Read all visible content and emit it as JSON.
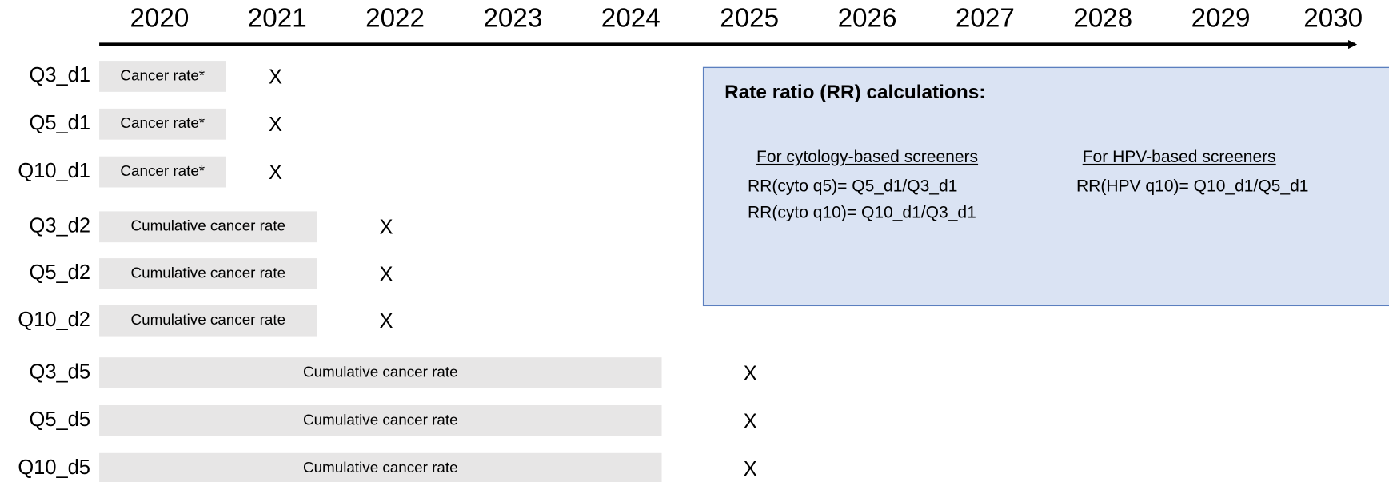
{
  "years": [
    "2020",
    "2021",
    "2022",
    "2023",
    "2024",
    "2025",
    "2026",
    "2027",
    "2028",
    "2029",
    "2030"
  ],
  "rows": [
    {
      "label": "Q3_d1",
      "bar": "Cancer rate*",
      "mark": "X"
    },
    {
      "label": "Q5_d1",
      "bar": "Cancer rate*",
      "mark": "X"
    },
    {
      "label": "Q10_d1",
      "bar": "Cancer rate*",
      "mark": "X"
    },
    {
      "label": "Q3_d2",
      "bar": "Cumulative cancer rate",
      "mark": "X"
    },
    {
      "label": "Q5_d2",
      "bar": "Cumulative cancer rate",
      "mark": "X"
    },
    {
      "label": "Q10_d2",
      "bar": "Cumulative cancer rate",
      "mark": "X"
    },
    {
      "label": "Q3_d5",
      "bar": "Cumulative cancer rate",
      "mark": "X"
    },
    {
      "label": "Q5_d5",
      "bar": "Cumulative cancer rate",
      "mark": "X"
    },
    {
      "label": "Q10_d5",
      "bar": "Cumulative cancer rate",
      "mark": "X"
    }
  ],
  "box": {
    "title": "Rate ratio (RR) calculations:",
    "columns": [
      {
        "heading": "For cytology-based screeners",
        "lines": [
          "RR(cyto q5)= Q5_d1/Q3_d1",
          "RR(cyto q10)= Q10_d1/Q3_d1"
        ]
      },
      {
        "heading": "For HPV-based screeners",
        "lines": [
          "RR(HPV q10)= Q10_d1/Q5_d1"
        ]
      }
    ]
  }
}
